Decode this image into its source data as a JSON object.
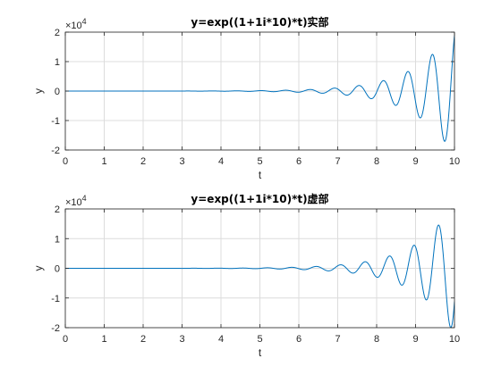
{
  "chart_data": [
    {
      "type": "line",
      "title": "y=exp((1+1i*10)*t)实部",
      "xlabel": "t",
      "ylabel": "y",
      "xlim": [
        0,
        10
      ],
      "ylim": [
        -2,
        2
      ],
      "y_multiplier_label": "×10",
      "y_multiplier_exponent": "4",
      "y_scale_factor": 10000,
      "xticks": [
        "0",
        "1",
        "2",
        "3",
        "4",
        "5",
        "6",
        "7",
        "8",
        "9",
        "10"
      ],
      "yticks": [
        "2",
        "1",
        "0",
        "-1",
        "-2"
      ],
      "ytick_values": [
        2,
        1,
        0,
        -1,
        -2
      ],
      "grid": true,
      "function": "real(exp((1+10i)*t)) / 1e4",
      "color": "#0072BD"
    },
    {
      "type": "line",
      "title": "y=exp((1+1i*10)*t)虚部",
      "xlabel": "t",
      "ylabel": "y",
      "xlim": [
        0,
        10
      ],
      "ylim": [
        -2,
        2
      ],
      "y_multiplier_label": "×10",
      "y_multiplier_exponent": "4",
      "y_scale_factor": 10000,
      "xticks": [
        "0",
        "1",
        "2",
        "3",
        "4",
        "5",
        "6",
        "7",
        "8",
        "9",
        "10"
      ],
      "yticks": [
        "2",
        "1",
        "0",
        "-1",
        "-2"
      ],
      "ytick_values": [
        2,
        1,
        0,
        -1,
        -2
      ],
      "grid": true,
      "function": "imag(exp((1+10i)*t)) / 1e4",
      "color": "#0072BD"
    }
  ]
}
